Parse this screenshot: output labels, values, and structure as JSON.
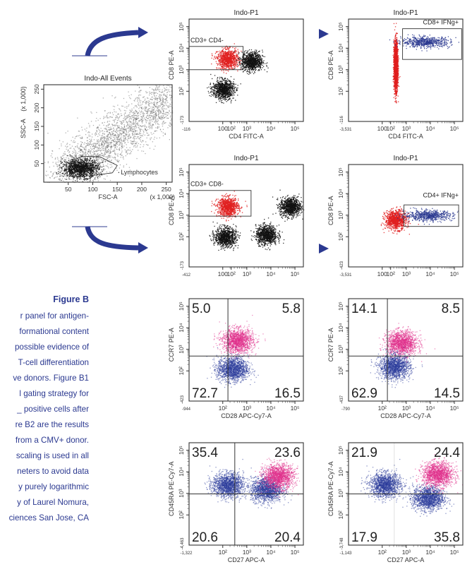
{
  "figure": {
    "title": "Figure B",
    "caption_lines": [
      "r panel for antigen-",
      "formational content",
      "possible evidence of",
      "T-cell differentiation",
      "ve donors. Figure B1",
      "l gating strategy for",
      "_ positive cells after",
      "re B2 are the results",
      "from a CMV+ donor.",
      "scaling is used in all",
      "neters to avoid data",
      "y purely logarithmic",
      "y of Laurel Nomura,",
      "ciences San Jose, CA"
    ],
    "accent_color": "#2b3990"
  },
  "chart_data": [
    {
      "id": "all-events",
      "type": "scatter",
      "title": "Indo-All Events",
      "xlabel": "FSC-A",
      "ylabel": "SSC-A",
      "x_scale_note": "(x 1,000)",
      "y_scale_note": "(x 1,000)",
      "xlim": [
        0,
        262
      ],
      "ylim": [
        0,
        262
      ],
      "xticks": [
        "50",
        "100",
        "150",
        "200",
        "250"
      ],
      "yticks": [
        "50",
        "100",
        "150",
        "200",
        "250"
      ],
      "gates": [
        {
          "label": "Lymphocytes",
          "shape": "polygon"
        }
      ],
      "populations": [
        {
          "color": "#808080",
          "center": [
            120,
            100
          ],
          "note": "diffuse diagonal cloud"
        },
        {
          "color": "#111111",
          "center": [
            75,
            40
          ],
          "note": "lymphocyte cluster"
        }
      ]
    },
    {
      "id": "cd8-gate",
      "type": "scatter",
      "title": "Indo-P1",
      "xlabel": "CD4 FITC-A",
      "ylabel": "CD8 PE-A",
      "x_min_label": "-116",
      "y_min_label": "-173",
      "xticks": [
        "100",
        "10^2",
        "10^3",
        "10^4",
        "10^5"
      ],
      "yticks": [
        "10^2",
        "10^3",
        "10^4",
        "10^5"
      ],
      "gates": [
        {
          "label": "CD3+ CD4-",
          "x": [
            0,
            700
          ],
          "y": [
            1000,
            12000
          ]
        }
      ],
      "populations": [
        {
          "color": "#e02020",
          "center_log": [
            2.2,
            3.5
          ],
          "note": "gated"
        },
        {
          "color": "#111111",
          "center_log": [
            2.0,
            2.1
          ]
        },
        {
          "color": "#111111",
          "center_log": [
            3.2,
            3.4
          ]
        }
      ]
    },
    {
      "id": "cd8-ifng",
      "type": "scatter",
      "title": "Indo-P1",
      "xlabel": "CD4 FITC-A",
      "ylabel": "CD8 PE-A",
      "x_min_label": "-3,531",
      "y_min_label": "-116",
      "xticks": [
        "100",
        "10^2",
        "10^3",
        "10^4",
        "10^5"
      ],
      "yticks": [
        "10^2",
        "10^3",
        "10^4",
        "10^5"
      ],
      "gates": [
        {
          "label": "CD8+ IFNg+",
          "x": [
            700,
            200000
          ],
          "y": [
            3000,
            80000
          ]
        }
      ],
      "populations": [
        {
          "color": "#e02020",
          "center_log": [
            2.55,
            3.2
          ],
          "note": "vertical band"
        },
        {
          "color": "#2b3990",
          "center_log": [
            3.8,
            4.3
          ],
          "note": "IFNg+ events"
        }
      ]
    },
    {
      "id": "cd4-gate",
      "type": "scatter",
      "title": "Indo-P1",
      "xlabel": "",
      "ylabel": "CD8 PE-A",
      "x_min_label": "-412",
      "y_min_label": "-173",
      "xticks": [
        "100",
        "10^2",
        "10^3",
        "10^4",
        "10^5"
      ],
      "yticks": [
        "10^2",
        "10^3",
        "10^4",
        "10^5"
      ],
      "gates": [
        {
          "label": "CD3+ CD8-",
          "x": [
            0,
            1500
          ],
          "y": [
            900,
            14000
          ]
        }
      ],
      "populations": [
        {
          "color": "#e02020",
          "center_log": [
            2.2,
            3.4
          ],
          "note": "gated"
        },
        {
          "color": "#111111",
          "center_log": [
            2.1,
            2.0
          ]
        },
        {
          "color": "#111111",
          "center_log": [
            4.8,
            3.4
          ]
        },
        {
          "color": "#111111",
          "center_log": [
            3.8,
            2.1
          ]
        }
      ]
    },
    {
      "id": "cd4-ifng",
      "type": "scatter",
      "title": "Indo-P1",
      "xlabel": "",
      "ylabel": "CD8 PE-A",
      "x_min_label": "-3,531",
      "y_min_label": "-423",
      "xticks": [
        "100",
        "10^2",
        "10^3",
        "10^4",
        "10^5"
      ],
      "yticks": [
        "10^2",
        "10^3",
        "10^4",
        "10^5"
      ],
      "gates": [
        {
          "label": "CD4+ IFNg+",
          "x": [
            800,
            150000
          ],
          "y": [
            300,
            3000
          ]
        }
      ],
      "populations": [
        {
          "color": "#e02020",
          "center_log": [
            2.55,
            2.8
          ]
        },
        {
          "color": "#2b3990",
          "center_log": [
            3.9,
            3.0
          ],
          "note": "IFNg+ events"
        }
      ]
    },
    {
      "id": "ccr7-cd28-a",
      "type": "scatter",
      "title": "",
      "xlabel": "CD28 APC-Cy7-A",
      "ylabel": "CCR7 PE-A",
      "x_min_label": "-944",
      "y_min_label": "-423",
      "xticks": [
        "10^2",
        "10^3",
        "10^4",
        "10^5"
      ],
      "yticks": [
        "10^2",
        "10^3",
        "10^4",
        "10^5"
      ],
      "quadrants": {
        "UL": "5.0",
        "UR": "5.8",
        "LL": "72.7",
        "LR": "16.5"
      },
      "populations": [
        {
          "color": "#e0308a",
          "center_log": [
            2.6,
            3.4
          ]
        },
        {
          "color": "#2b3c9b",
          "center_log": [
            2.4,
            2.1
          ]
        }
      ]
    },
    {
      "id": "ccr7-cd28-b",
      "type": "scatter",
      "title": "",
      "xlabel": "CD28 APC-Cy7-A",
      "ylabel": "CCR7 PE-A",
      "x_min_label": "-790",
      "y_min_label": "-437",
      "xticks": [
        "10^2",
        "10^3",
        "10^4",
        "10^5"
      ],
      "yticks": [
        "10^2",
        "10^3",
        "10^4",
        "10^5"
      ],
      "quadrants": {
        "UL": "14.1",
        "UR": "8.5",
        "LL": "62.9",
        "LR": "14.5"
      },
      "populations": [
        {
          "color": "#e0308a",
          "center_log": [
            2.8,
            3.3
          ]
        },
        {
          "color": "#2b3c9b",
          "center_log": [
            2.5,
            2.2
          ]
        }
      ]
    },
    {
      "id": "cd45ra-cd27-a",
      "type": "scatter",
      "title": "",
      "xlabel": "CD27 APC-A",
      "ylabel": "CD45RA PE-Cy7-A",
      "x_min_label": "-1,322",
      "y_min_label": "-4,463",
      "xticks": [
        "10^2",
        "10^3",
        "10^4",
        "10^5"
      ],
      "yticks": [
        "10^2",
        "10^3",
        "10^4",
        "10^5"
      ],
      "quadrants": {
        "UL": "35.4",
        "UR": "23.6",
        "LL": "20.6",
        "LR": "20.4"
      },
      "populations": [
        {
          "color": "#2b3c9b",
          "center_log": [
            2.2,
            3.4
          ]
        },
        {
          "color": "#2b3c9b",
          "center_log": [
            3.8,
            3.2
          ]
        },
        {
          "color": "#e0308a",
          "center_log": [
            4.3,
            3.8
          ]
        }
      ]
    },
    {
      "id": "cd45ra-cd27-b",
      "type": "scatter",
      "title": "",
      "xlabel": "CD27 APC-A",
      "ylabel": "CD45RA PE-Cy7-A",
      "x_min_label": "-1,143",
      "y_min_label": "-3,748",
      "xticks": [
        "10^2",
        "10^3",
        "10^4",
        "10^5"
      ],
      "yticks": [
        "10^2",
        "10^3",
        "10^4",
        "10^5"
      ],
      "quadrants": {
        "UL": "21.9",
        "UR": "24.4",
        "LL": "17.9",
        "LR": "35.8"
      },
      "populations": [
        {
          "color": "#2b3c9b",
          "center_log": [
            2.1,
            3.4
          ]
        },
        {
          "color": "#2b3c9b",
          "center_log": [
            3.9,
            2.8
          ]
        },
        {
          "color": "#e0308a",
          "center_log": [
            4.3,
            3.9
          ]
        }
      ]
    }
  ]
}
